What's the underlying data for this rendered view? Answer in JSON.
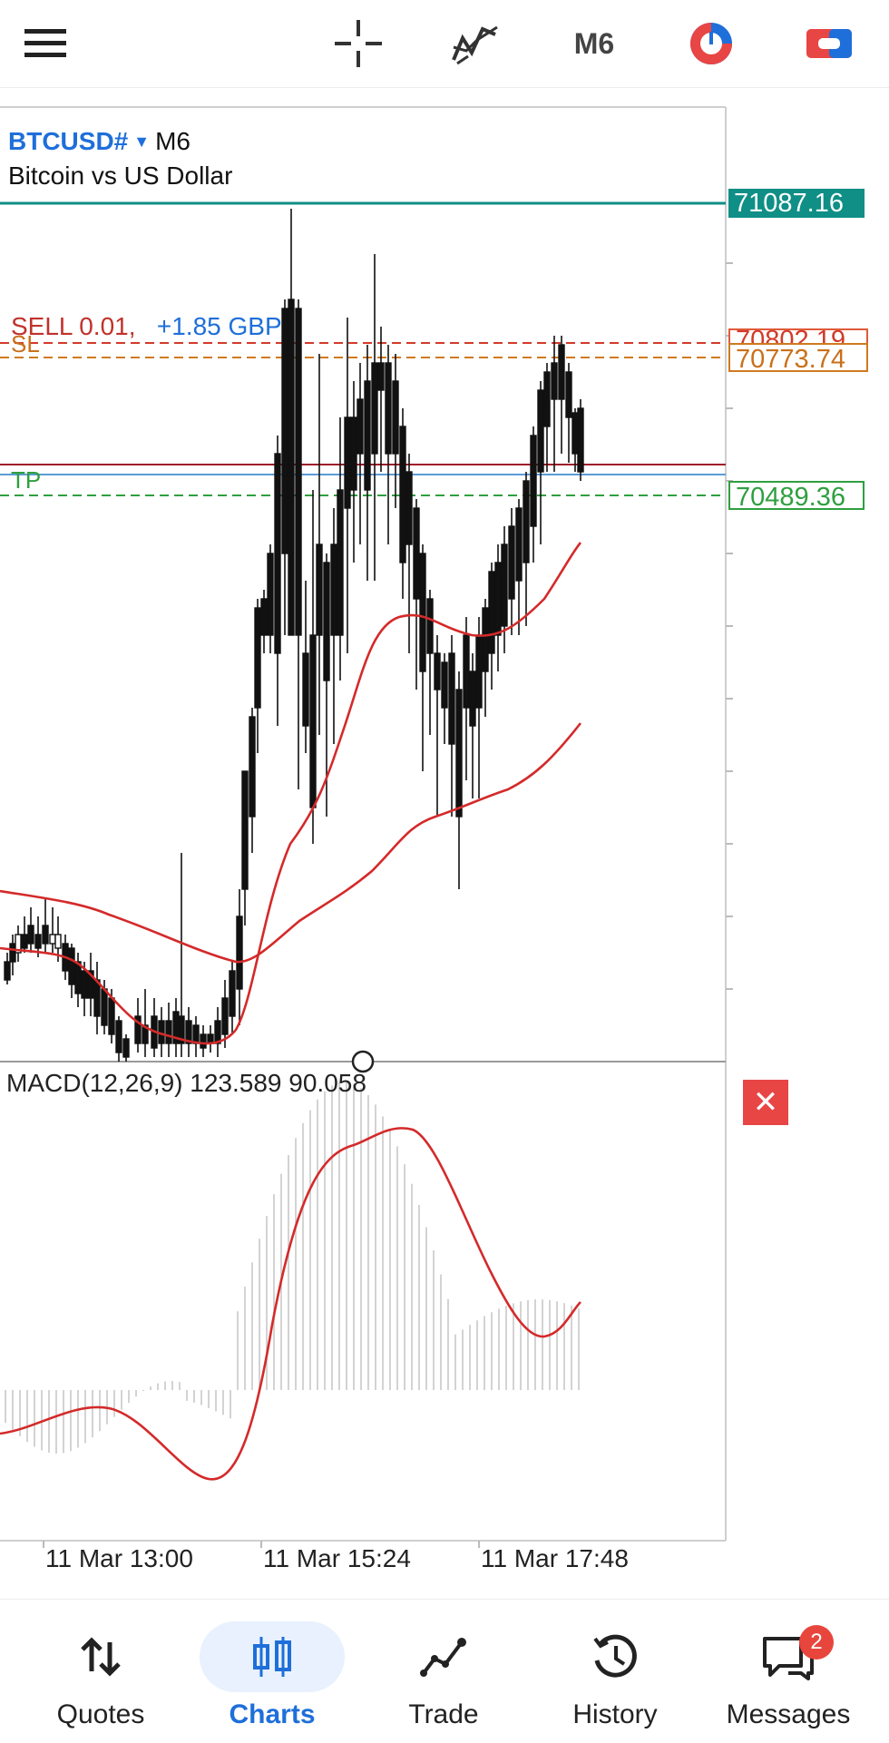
{
  "toolbar": {
    "menu_icon": "hamburger-icon",
    "crosshair_icon": "crosshair-icon",
    "indicators_icon": "indicators-icon",
    "period": "M6",
    "objects_icon": "objects-icon",
    "trade_icon": "one-click-trade-icon"
  },
  "chart": {
    "symbol": "BTCUSD#",
    "period": "M6",
    "description": "Bitcoin vs US Dollar",
    "current_price": "71087.16",
    "order_label": "SELL 0.01,",
    "order_profit": "+1.85 GBP",
    "sell_price": "70802.19",
    "sl_label": "SL",
    "sl_price": "70773.74",
    "tp_label": "TP",
    "tp_price": "70489.36",
    "colors": {
      "current": "#0f8f86",
      "sell": "#d23b2a",
      "sl": "#d07a1f",
      "tp": "#2f9f3f",
      "bid": "#5b9bd5",
      "ma": "#d42a2a"
    }
  },
  "macd": {
    "label": "MACD(12,26,9) 123.589 90.058",
    "close_icon": "close-icon"
  },
  "time_axis": [
    "11 Mar 13:00",
    "11 Mar 15:24",
    "11 Mar 17:48"
  ],
  "nav": {
    "items": [
      {
        "label": "Quotes",
        "icon": "quotes-icon"
      },
      {
        "label": "Charts",
        "icon": "charts-icon"
      },
      {
        "label": "Trade",
        "icon": "trade-icon"
      },
      {
        "label": "History",
        "icon": "history-icon"
      },
      {
        "label": "Messages",
        "icon": "messages-icon",
        "badge": "2"
      }
    ]
  }
}
